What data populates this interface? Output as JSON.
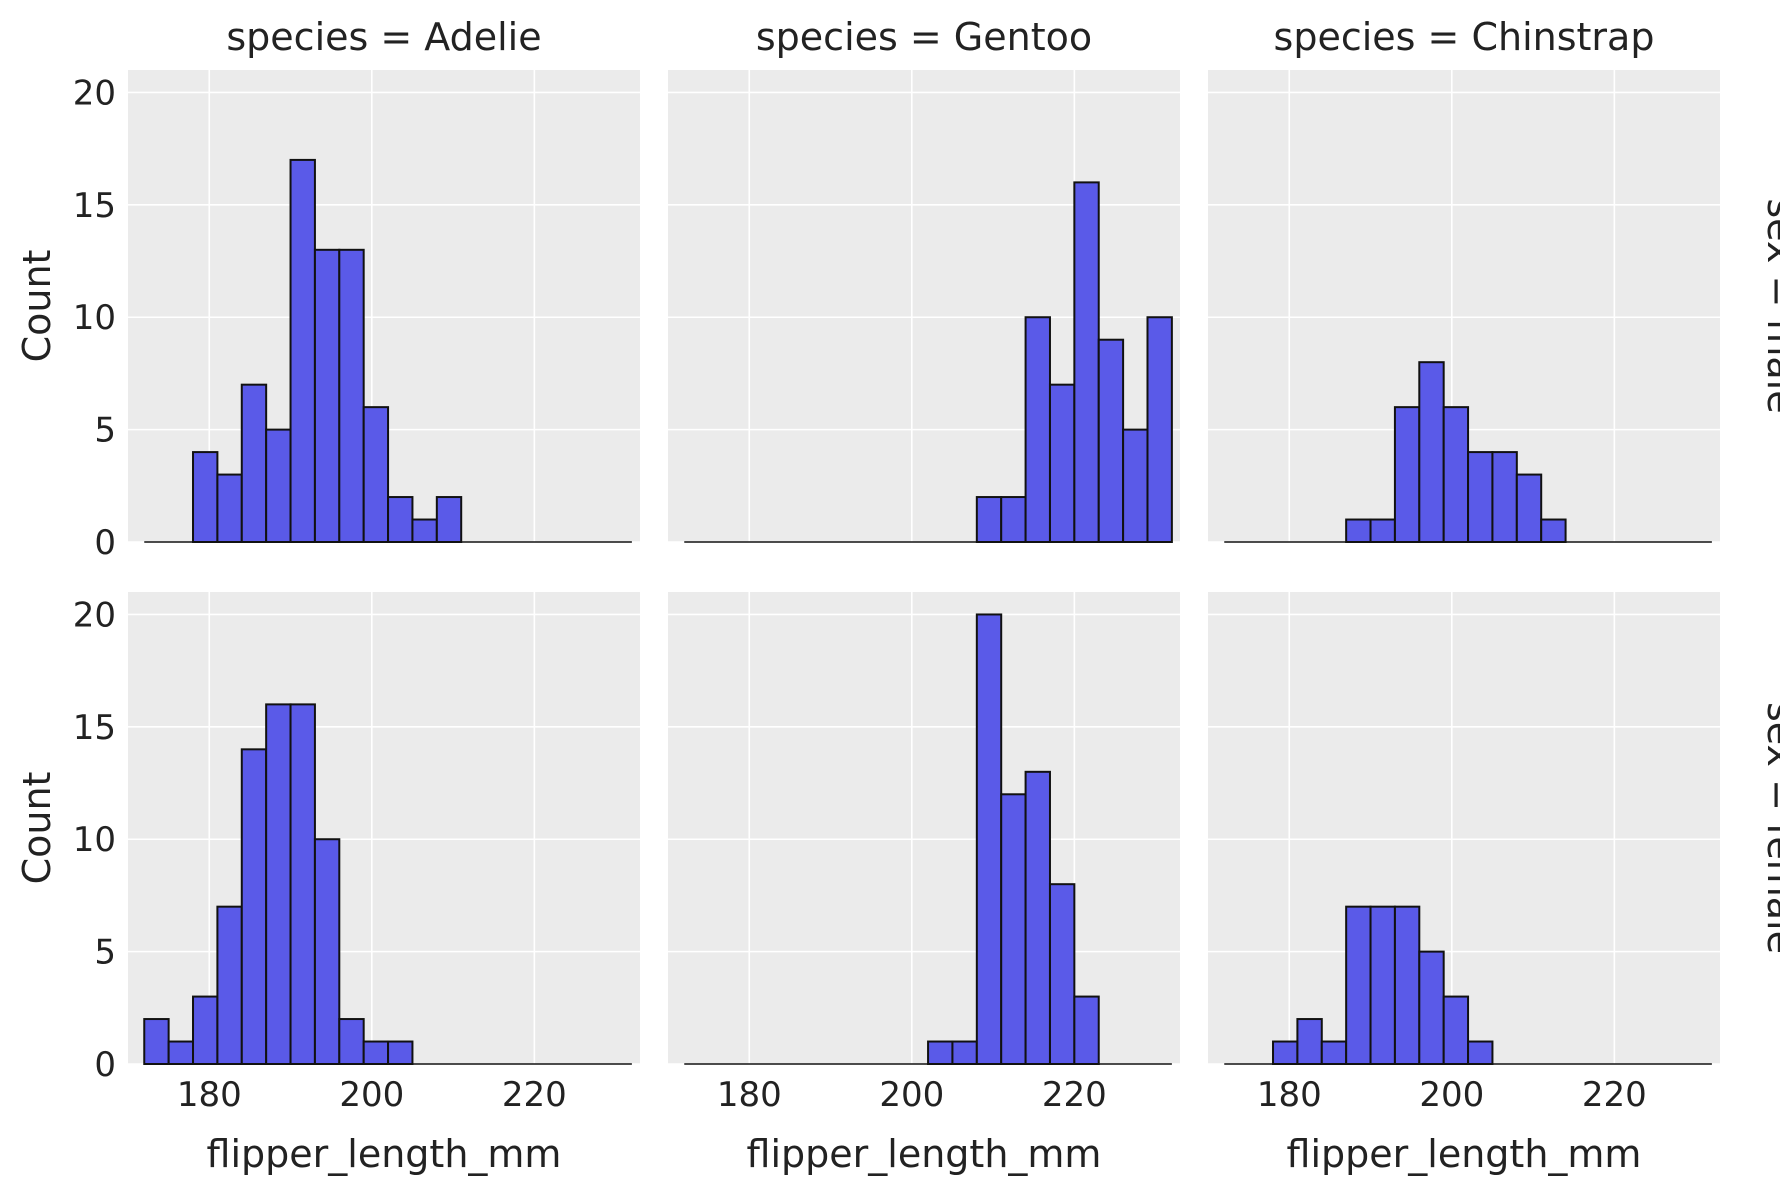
{
  "chart_data": {
    "type": "bar",
    "kind": "faceted-histogram",
    "x_variable": "flipper_length_mm",
    "xlabel": "flipper_length_mm",
    "ylabel": "Count",
    "xlim": [
      170,
      233
    ],
    "ylim": [
      0,
      21
    ],
    "xticks": [
      180,
      200,
      220
    ],
    "yticks": [
      0,
      5,
      10,
      15,
      20
    ],
    "grid": true,
    "bar_color": "#5a5ae8",
    "panel_background": "#ebebeb",
    "bins": [
      [
        172.0,
        175.0
      ],
      [
        175.0,
        178.0
      ],
      [
        178.0,
        181.0
      ],
      [
        181.0,
        184.0
      ],
      [
        184.0,
        187.0
      ],
      [
        187.0,
        190.0
      ],
      [
        190.0,
        193.0
      ],
      [
        193.0,
        196.0
      ],
      [
        196.0,
        199.0
      ],
      [
        199.0,
        202.0
      ],
      [
        202.0,
        205.0
      ],
      [
        205.0,
        208.0
      ],
      [
        208.0,
        211.0
      ],
      [
        211.0,
        214.0
      ],
      [
        214.0,
        217.0
      ],
      [
        217.0,
        220.0
      ],
      [
        220.0,
        223.0
      ],
      [
        223.0,
        226.0
      ],
      [
        226.0,
        229.0
      ],
      [
        229.0,
        232.0
      ]
    ],
    "col_titles": [
      "species = Adelie",
      "species = Gentoo",
      "species = Chinstrap"
    ],
    "row_titles": [
      "sex = male",
      "sex = female"
    ],
    "panels": [
      {
        "row": 0,
        "col": 0,
        "species": "Adelie",
        "sex": "male",
        "counts": [
          0,
          0,
          4,
          3,
          7,
          5,
          17,
          13,
          13,
          6,
          2,
          1,
          2,
          0,
          0,
          0,
          0,
          0,
          0,
          0
        ]
      },
      {
        "row": 0,
        "col": 1,
        "species": "Gentoo",
        "sex": "male",
        "counts": [
          0,
          0,
          0,
          0,
          0,
          0,
          0,
          0,
          0,
          0,
          0,
          0,
          2,
          2,
          10,
          7,
          16,
          9,
          5,
          10
        ]
      },
      {
        "row": 0,
        "col": 2,
        "species": "Chinstrap",
        "sex": "male",
        "counts": [
          0,
          0,
          0,
          0,
          0,
          1,
          1,
          6,
          8,
          6,
          4,
          4,
          3,
          1,
          0,
          0,
          0,
          0,
          0,
          0
        ]
      },
      {
        "row": 1,
        "col": 0,
        "species": "Adelie",
        "sex": "female",
        "counts": [
          2,
          1,
          3,
          7,
          14,
          16,
          16,
          10,
          2,
          1,
          1,
          0,
          0,
          0,
          0,
          0,
          0,
          0,
          0,
          0
        ]
      },
      {
        "row": 1,
        "col": 1,
        "species": "Gentoo",
        "sex": "female",
        "counts": [
          0,
          0,
          0,
          0,
          0,
          0,
          0,
          0,
          0,
          0,
          1,
          1,
          20,
          12,
          13,
          8,
          3,
          0,
          0,
          0
        ]
      },
      {
        "row": 1,
        "col": 2,
        "species": "Chinstrap",
        "sex": "female",
        "counts": [
          0,
          0,
          1,
          2,
          1,
          7,
          7,
          7,
          5,
          3,
          1,
          0,
          0,
          0,
          0,
          0,
          0,
          0,
          0,
          0
        ]
      }
    ]
  }
}
